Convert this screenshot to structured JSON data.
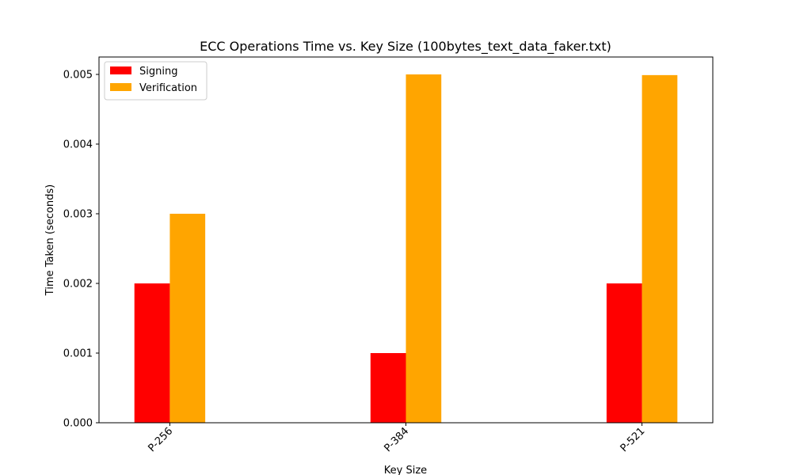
{
  "chart_data": {
    "type": "bar",
    "title": "ECC Operations Time vs. Key Size (100bytes_text_data_faker.txt)",
    "xlabel": "Key Size",
    "ylabel": "Time Taken (seconds)",
    "categories": [
      "P-256",
      "P-384",
      "P-521"
    ],
    "series": [
      {
        "name": "Signing",
        "color": "#ff0000",
        "values": [
          0.002,
          0.001,
          0.002
        ]
      },
      {
        "name": "Verification",
        "color": "#ffa500",
        "values": [
          0.003,
          0.005,
          0.00499
        ]
      }
    ],
    "ylim": [
      0,
      0.00525
    ],
    "yticks": [
      "0.000",
      "0.001",
      "0.002",
      "0.003",
      "0.004",
      "0.005"
    ],
    "x_tick_rotation": 45,
    "grid": false,
    "legend_position": "top-left"
  }
}
